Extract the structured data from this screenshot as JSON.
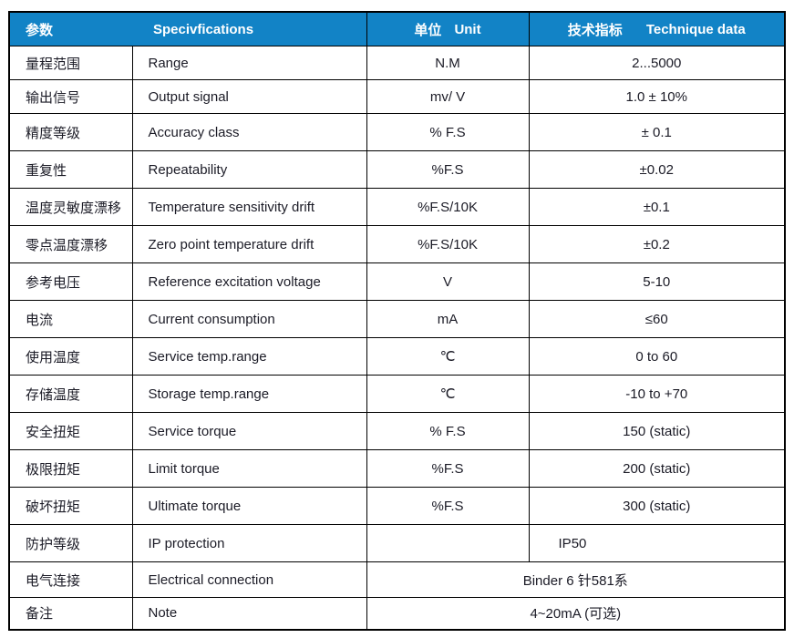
{
  "colors": {
    "header_bg": "#1283c6",
    "header_text": "#ffffff",
    "body_text": "#1b1b26",
    "border": "#000000"
  },
  "table": {
    "header": {
      "param": "参数",
      "spec": "Specivfications",
      "unit_cn": "单位",
      "unit_en": "Unit",
      "data_cn": "技术指标",
      "data_en": "Technique data"
    },
    "rows": [
      {
        "param": "量程范围",
        "spec": "Range",
        "unit": "N.M",
        "value": "2...5000"
      },
      {
        "param": "输出信号",
        "spec": "Output signal",
        "unit": "mv/ V",
        "value": "1.0 ± 10%"
      },
      {
        "param": "精度等级",
        "spec": "Accuracy class",
        "unit": "% F.S",
        "value": "± 0.1"
      },
      {
        "param": "重复性",
        "spec": "Repeatability",
        "unit": "%F.S",
        "value": "±0.02"
      },
      {
        "param": "温度灵敏度漂移",
        "spec": "Temperature sensitivity drift",
        "unit": "%F.S/10K",
        "value": "±0.1"
      },
      {
        "param": "零点温度漂移",
        "spec": "Zero point temperature drift",
        "unit": "%F.S/10K",
        "value": "±0.2"
      },
      {
        "param": "参考电压",
        "spec": "Reference excitation voltage",
        "unit": "V",
        "value": "5-10"
      },
      {
        "param": "电流",
        "spec": "Current consumption",
        "unit": "mA",
        "value": "≤60"
      },
      {
        "param": "使用温度",
        "spec": "Service temp.range",
        "unit": "℃",
        "value": "0 to 60"
      },
      {
        "param": "存储温度",
        "spec": "Storage temp.range",
        "unit": "℃",
        "value": "-10 to +70"
      },
      {
        "param": "安全扭矩",
        "spec": "Service torque",
        "unit": "% F.S",
        "value": "150 (static)"
      },
      {
        "param": "极限扭矩",
        "spec": "Limit torque",
        "unit": "%F.S",
        "value": "200 (static)"
      },
      {
        "param": "破坏扭矩",
        "spec": "Ultimate torque",
        "unit": "%F.S",
        "value": "300 (static)"
      },
      {
        "param": "防护等级",
        "spec": "IP protection",
        "unit": "",
        "value": "IP50",
        "value_align": "left"
      },
      {
        "param": "电气连接",
        "spec": "Electrical connection",
        "merged": true,
        "value": "Binder 6 针581系"
      },
      {
        "param": "备注",
        "spec": "Note",
        "merged": true,
        "value": "4~20mA (可选)"
      }
    ]
  }
}
